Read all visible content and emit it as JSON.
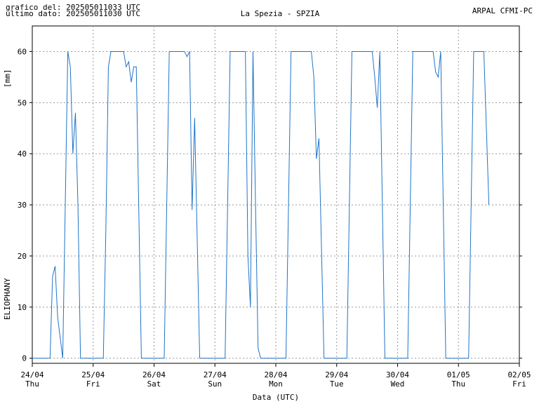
{
  "chart_data": {
    "type": "line",
    "title": "La Spezia - SPZIA",
    "header_left": [
      "grafico del: 202505011033 UTC",
      "ultimo dato: 202505011030 UTC"
    ],
    "header_right": "ARPAL CFMI-PC",
    "y_unit": "[mm]",
    "ylabel": "ELIOPHANY",
    "xlabel": "Data (UTC)",
    "color": "#1f74c8",
    "grid": true,
    "xlim": [
      0,
      192
    ],
    "xticks": [
      {
        "value": 0,
        "label": "24/04"
      },
      {
        "value": 24,
        "label": "25/04"
      },
      {
        "value": 48,
        "label": "26/04"
      },
      {
        "value": 72,
        "label": "27/04"
      },
      {
        "value": 96,
        "label": "28/04"
      },
      {
        "value": 120,
        "label": "29/04"
      },
      {
        "value": 144,
        "label": "30/04"
      },
      {
        "value": 168,
        "label": "01/05"
      },
      {
        "value": 192,
        "label": "02/05"
      }
    ],
    "xtick_weekdays": [
      "Thu",
      "Fri",
      "Sat",
      "Sun",
      "Mon",
      "Tue",
      "Wed",
      "Thu",
      "Fri"
    ],
    "ylim": [
      -1,
      65
    ],
    "yticks": [
      0,
      10,
      20,
      30,
      40,
      50,
      60
    ],
    "x": [
      0,
      7,
      8,
      9,
      10,
      12,
      14,
      15,
      16,
      17,
      18,
      19,
      28,
      29,
      30,
      31,
      36,
      37,
      38,
      39,
      40,
      41,
      43,
      52,
      54,
      60,
      61,
      62,
      63,
      64,
      66,
      76,
      78,
      84,
      85,
      86,
      87,
      88,
      89,
      90,
      100,
      102,
      110,
      111,
      112,
      113,
      115,
      124,
      126,
      134,
      135,
      136,
      137,
      139,
      148,
      150,
      158,
      159,
      160,
      161,
      163,
      172,
      174,
      178,
      180
    ],
    "values": [
      0,
      0,
      16,
      18,
      8,
      0,
      60,
      57,
      40,
      48,
      30,
      0,
      0,
      25,
      57,
      60,
      60,
      57,
      58,
      54,
      57,
      57,
      0,
      0,
      60,
      60,
      59,
      60,
      29,
      47,
      0,
      0,
      60,
      60,
      20,
      10,
      60,
      30,
      2,
      0,
      0,
      60,
      60,
      55,
      39,
      43,
      0,
      0,
      60,
      60,
      55,
      49,
      60,
      0,
      0,
      60,
      60,
      56,
      55,
      60,
      0,
      0,
      60,
      60,
      30
    ]
  }
}
